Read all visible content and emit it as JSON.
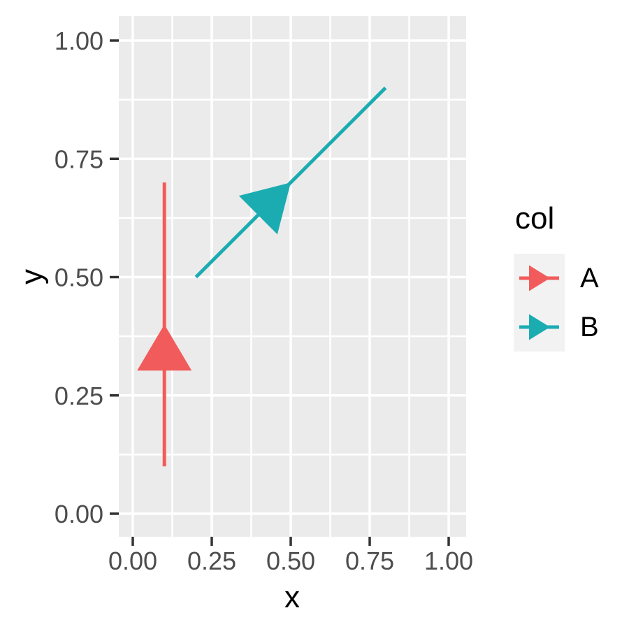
{
  "chart_data": {
    "type": "line",
    "subtype": "arrow-segments",
    "title": "",
    "xlabel": "x",
    "ylabel": "y",
    "xlim": [
      -0.05,
      1.05
    ],
    "ylim": [
      -0.05,
      1.05
    ],
    "grid": true,
    "panel_bg": "#EBEBEB",
    "grid_color": "#FFFFFF",
    "tick_color": "#333333",
    "tick_label_color": "#4D4D4D",
    "x_ticks": {
      "values": [
        0.0,
        0.25,
        0.5,
        0.75,
        1.0
      ],
      "labels": [
        "0.00",
        "0.25",
        "0.50",
        "0.75",
        "1.00"
      ]
    },
    "y_ticks": {
      "values": [
        0.0,
        0.25,
        0.5,
        0.75,
        1.0
      ],
      "labels": [
        "0.00",
        "0.25",
        "0.50",
        "0.75",
        "1.00"
      ]
    },
    "x_minor_ticks": [
      0.125,
      0.375,
      0.625,
      0.875
    ],
    "y_minor_ticks": [
      0.125,
      0.375,
      0.625,
      0.875
    ],
    "series": [
      {
        "name": "A",
        "color": "#F25B5B",
        "from": [
          0.1,
          0.1
        ],
        "to": [
          0.1,
          0.7
        ],
        "arrow_tip": [
          0.1,
          0.4
        ]
      },
      {
        "name": "B",
        "color": "#1BACB2",
        "from": [
          0.2,
          0.5
        ],
        "to": [
          0.8,
          0.9
        ],
        "arrow_tip": [
          0.5,
          0.7
        ]
      }
    ],
    "legend": {
      "title": "col",
      "position": "right",
      "key_bg": "#F2F2F2",
      "entries": [
        {
          "label": "A",
          "color": "#F25B5B"
        },
        {
          "label": "B",
          "color": "#1BACB2"
        }
      ]
    }
  }
}
